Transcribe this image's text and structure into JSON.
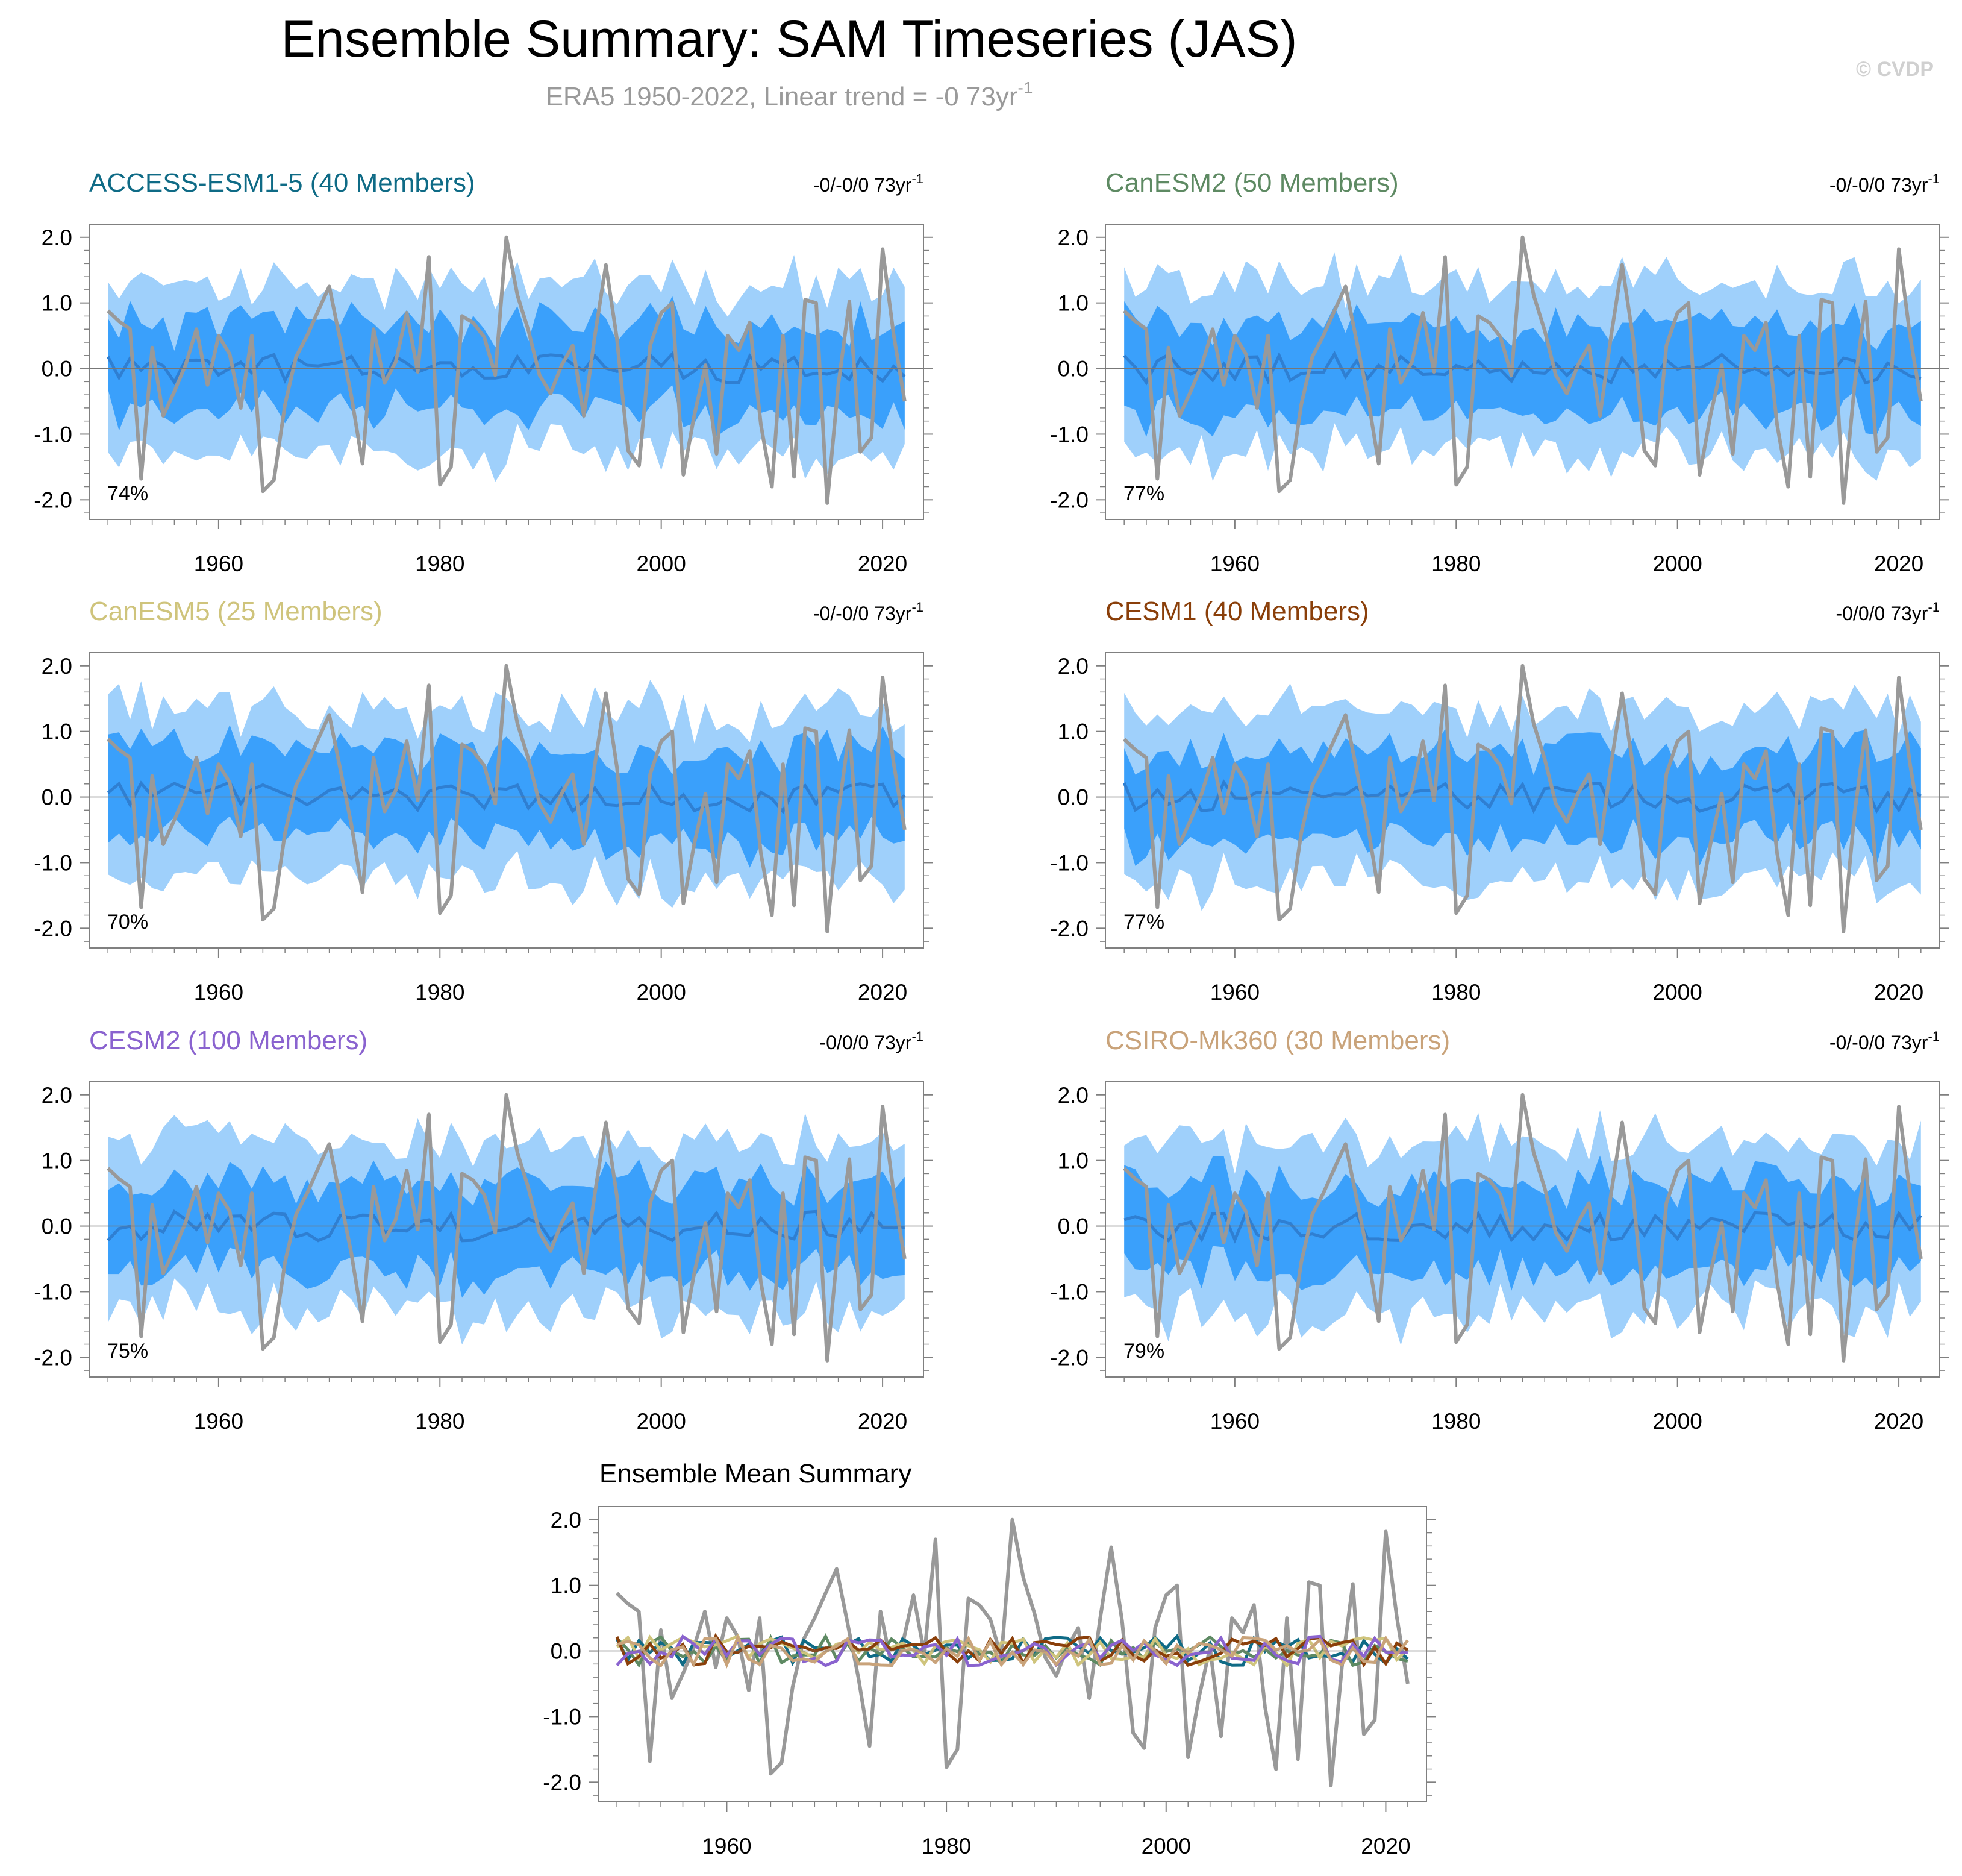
{
  "figure": {
    "title": "Ensemble Summary: SAM Timeseries (JAS)",
    "subtitle": "ERA5 1950-2022, Linear trend = -0 73yr",
    "subtitle_sup": "-1",
    "watermark": "© CVDP"
  },
  "colors": {
    "obs_line": "#999999",
    "band_outer": "#9fd0fb",
    "band_inner": "#3aa0fb",
    "ens_mean": "#2f7fd2",
    "axis": "#808080"
  },
  "panel_config": {
    "xlim": [
      1949.5,
      2022.5
    ],
    "ylim": [
      -2.3,
      2.2
    ],
    "yticks": [
      -2.0,
      -1.0,
      0.0,
      1.0,
      2.0
    ],
    "ytick_labels": [
      "-2.0",
      "-1.0",
      "0.0",
      "1.0",
      "2.0"
    ],
    "xticks": [
      1960,
      1980,
      2000,
      2020
    ],
    "xtick_labels": [
      "1960",
      "1980",
      "2000",
      "2020"
    ],
    "trend_sup": "-1"
  },
  "panels": [
    {
      "title": "ACCESS-ESM1-5 (40 Members)",
      "title_color": "#0f6b86",
      "trend": "-0/-0/0 73yr",
      "pct": "74%",
      "seed": 11
    },
    {
      "title": "CanESM2 (50 Members)",
      "title_color": "#5e8a63",
      "trend": "-0/-0/0 73yr",
      "pct": "77%",
      "seed": 23
    },
    {
      "title": "CanESM5 (25 Members)",
      "title_color": "#cfc47c",
      "trend": "-0/-0/0 73yr",
      "pct": "70%",
      "seed": 37
    },
    {
      "title": "CESM1 (40 Members)",
      "title_color": "#8a3f0a",
      "trend": "-0/0/0 73yr",
      "pct": "77%",
      "seed": 41
    },
    {
      "title": "CESM2 (100 Members)",
      "title_color": "#8a63cf",
      "trend": "-0/0/0 73yr",
      "pct": "75%",
      "seed": 53
    },
    {
      "title": "CSIRO-Mk360 (30 Members)",
      "title_color": "#c9a37a",
      "trend": "-0/-0/0 73yr",
      "pct": "79%",
      "seed": 67
    }
  ],
  "summary": {
    "title": "Ensemble Mean Summary",
    "ylim": [
      -2.3,
      2.2
    ],
    "xlim": [
      1949.5,
      2022.5
    ]
  },
  "chart_data": {
    "type": "line",
    "x_start": 1950,
    "x_end": 2022,
    "obs_name": "ERA5",
    "obs_values": [
      0.88,
      0.72,
      0.6,
      -1.68,
      0.32,
      -0.72,
      -0.35,
      0.05,
      0.6,
      -0.25,
      0.5,
      0.22,
      -0.6,
      0.5,
      -1.87,
      -1.7,
      -0.55,
      0.18,
      0.5,
      0.88,
      1.25,
      0.42,
      -0.42,
      -1.45,
      0.6,
      -0.22,
      0.1,
      0.85,
      -0.05,
      1.7,
      -1.77,
      -1.5,
      0.8,
      0.7,
      0.48,
      -0.1,
      2.0,
      1.12,
      0.58,
      -0.1,
      -0.38,
      0.05,
      0.35,
      -0.72,
      0.5,
      1.58,
      0.45,
      -1.25,
      -1.48,
      0.35,
      0.85,
      1.0,
      -1.62,
      -0.7,
      0.05,
      -1.3,
      0.5,
      0.28,
      0.7,
      -0.85,
      -1.8,
      0.5,
      -1.65,
      1.05,
      1.0,
      -2.05,
      -0.25,
      1.02,
      -1.27,
      -1.05,
      1.82,
      0.52,
      -0.5
    ]
  }
}
